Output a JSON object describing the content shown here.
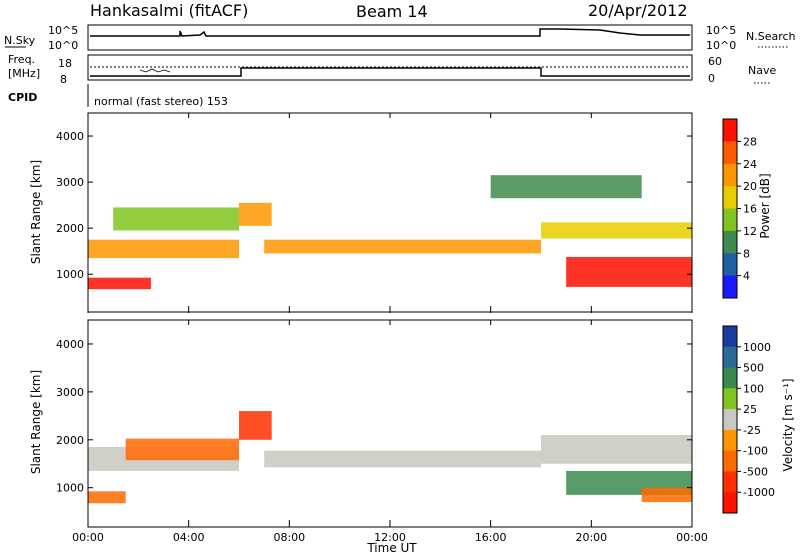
{
  "header": {
    "station": "Hankasalmi (fitACF)",
    "beam": "Beam 14",
    "date": "20/Apr/2012"
  },
  "strips": {
    "nsky_label": "N.Sky",
    "nsearch_label": "N.Search",
    "freq_label_1": "Freq.",
    "freq_label_2": "[MHz]",
    "nave_label": "Nave",
    "cpid_label": "CPID",
    "cpid_value": "normal (fast stereo) 153",
    "nsky_ticks": [
      "10^5",
      "10^0"
    ],
    "nsearch_ticks": [
      "10^5",
      "10^0"
    ],
    "freq_ticks": [
      "18",
      "8"
    ],
    "nave_ticks": [
      "60",
      "0"
    ]
  },
  "chart_data": [
    {
      "type": "heatmap",
      "panel": "power",
      "ylabel": "Slant Range [km]",
      "y_ticks": [
        "4000",
        "3000",
        "2000",
        "1000"
      ],
      "ylim": [
        180,
        4500
      ],
      "colorbar_label": "Power [dB]",
      "colorbar_ticks": [
        "28",
        "24",
        "20",
        "16",
        "12",
        "8",
        "4"
      ],
      "colorbar_colors": [
        "#ff1100",
        "#ff5a00",
        "#ff9600",
        "#e8cc00",
        "#7fc51f",
        "#3f8a4e",
        "#1f5fa2",
        "#1a1aff"
      ],
      "echo_bands": [
        {
          "t_start": 0.0,
          "t_end": 6.0,
          "range_center": 1550,
          "range_width": 400,
          "power": 22
        },
        {
          "t_start": 0.0,
          "t_end": 2.5,
          "range_center": 800,
          "range_width": 250,
          "power": 27
        },
        {
          "t_start": 1.0,
          "t_end": 6.0,
          "range_center": 2200,
          "range_width": 500,
          "power": 14
        },
        {
          "t_start": 6.0,
          "t_end": 7.3,
          "range_center": 2300,
          "range_width": 500,
          "power": 20
        },
        {
          "t_start": 7.0,
          "t_end": 18.0,
          "range_center": 1600,
          "range_width": 300,
          "power": 22
        },
        {
          "t_start": 18.0,
          "t_end": 24.0,
          "range_center": 1950,
          "range_width": 350,
          "power": 18
        },
        {
          "t_start": 19.0,
          "t_end": 24.0,
          "range_center": 1050,
          "range_width": 650,
          "power": 28
        },
        {
          "t_start": 16.0,
          "t_end": 22.0,
          "range_center": 2900,
          "range_width": 500,
          "power": 8
        }
      ]
    },
    {
      "type": "heatmap",
      "panel": "velocity",
      "ylabel": "Slant Range [km]",
      "y_ticks": [
        "4000",
        "3000",
        "2000",
        "1000"
      ],
      "ylim": [
        180,
        4500
      ],
      "colorbar_label": "Velocity [m s⁻¹]",
      "colorbar_ticks": [
        "1000",
        "500",
        "100",
        "25",
        "-25",
        "-100",
        "-500",
        "-1000"
      ],
      "colorbar_colors": [
        "#1a3aa0",
        "#2a6a96",
        "#3a8a4e",
        "#7fc51f",
        "#c8c8c0",
        "#ff9600",
        "#ff6a00",
        "#ff3000",
        "#ff1100"
      ],
      "echo_bands": [
        {
          "t_start": 0.0,
          "t_end": 6.0,
          "range_center": 1600,
          "range_width": 500,
          "velocity": 0
        },
        {
          "t_start": 1.5,
          "t_end": 6.0,
          "range_center": 1800,
          "range_width": 450,
          "velocity": -250
        },
        {
          "t_start": 0.0,
          "t_end": 1.5,
          "range_center": 800,
          "range_width": 250,
          "velocity": -200
        },
        {
          "t_start": 6.0,
          "t_end": 7.3,
          "range_center": 2300,
          "range_width": 600,
          "velocity": -400
        },
        {
          "t_start": 7.0,
          "t_end": 18.0,
          "range_center": 1600,
          "range_width": 350,
          "velocity": 0
        },
        {
          "t_start": 18.0,
          "t_end": 24.0,
          "range_center": 1800,
          "range_width": 600,
          "velocity": 0
        },
        {
          "t_start": 19.0,
          "t_end": 24.0,
          "range_center": 1100,
          "range_width": 500,
          "velocity": 150
        },
        {
          "t_start": 22.0,
          "t_end": 24.0,
          "range_center": 850,
          "range_width": 300,
          "velocity": -250
        }
      ]
    }
  ],
  "x_axis": {
    "label": "Time UT",
    "ticks": [
      "00:00",
      "04:00",
      "08:00",
      "12:00",
      "16:00",
      "20:00",
      "00:00"
    ]
  }
}
